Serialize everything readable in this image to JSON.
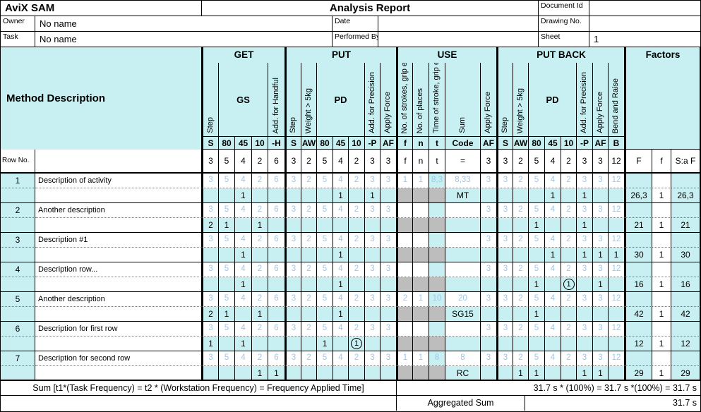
{
  "window": {
    "app_title": "AviX SAM",
    "report_title": "Analysis Report"
  },
  "info": {
    "document_id": {
      "label": "Document Id",
      "value": ""
    },
    "owner": {
      "label": "Owner",
      "value": "No name"
    },
    "date": {
      "label": "Date",
      "value": ""
    },
    "drawing_no": {
      "label": "Drawing No.",
      "value": ""
    },
    "task": {
      "label": "Task",
      "value": "No name"
    },
    "performed_by": {
      "label": "Performed By",
      "value": ""
    },
    "sheet": {
      "label": "Sheet",
      "value": "1"
    }
  },
  "table": {
    "method_description_label": "Method Description",
    "row_no_label": "Row No.",
    "groups": [
      {
        "label": "GET",
        "cols": [
          {
            "vlabel": "Step",
            "code": "S",
            "num": "3"
          },
          {
            "sub": "GS",
            "code": "80",
            "num": "5"
          },
          {
            "sub": "GS",
            "code": "45",
            "num": "4"
          },
          {
            "sub": "GS",
            "code": "10",
            "num": "2"
          },
          {
            "vlabel": "Add. for Handful",
            "code": "-H",
            "num": "6"
          }
        ]
      },
      {
        "label": "PUT",
        "cols": [
          {
            "vlabel": "Step",
            "code": "S",
            "num": "3"
          },
          {
            "vlabel": "Weight > 5kg",
            "code": "AW",
            "num": "2"
          },
          {
            "sub": "PD",
            "code": "80",
            "num": "5"
          },
          {
            "sub": "PD",
            "code": "45",
            "num": "4"
          },
          {
            "sub": "PD",
            "code": "10",
            "num": "2"
          },
          {
            "vlabel": "Add. for Precision",
            "code": "-P",
            "num": "3"
          },
          {
            "vlabel": "Apply Force",
            "code": "AF",
            "num": "3"
          }
        ]
      },
      {
        "label": "USE",
        "cols": [
          {
            "vlabel": "No. of strokes, grip e",
            "code": "f",
            "num": "f"
          },
          {
            "vlabel": "No. of places",
            "code": "n",
            "num": "n"
          },
          {
            "vlabel": "Time of stroke, grip e",
            "code": "t",
            "num": "t"
          },
          {
            "vlabel": "Sum",
            "code": "Code",
            "num": "="
          },
          {
            "vlabel": "Apply Force",
            "code": "AF",
            "num": "3"
          }
        ]
      },
      {
        "label": "PUT BACK",
        "cols": [
          {
            "vlabel": "Step",
            "code": "S",
            "num": "3"
          },
          {
            "vlabel": "Weight > 5kg",
            "code": "AW",
            "num": "2"
          },
          {
            "sub": "PD",
            "code": "80",
            "num": "5"
          },
          {
            "sub": "PD",
            "code": "45",
            "num": "4"
          },
          {
            "sub": "PD",
            "code": "10",
            "num": "2"
          },
          {
            "vlabel": "Add. for Precision",
            "code": "-P",
            "num": "3"
          },
          {
            "vlabel": "Apply Force",
            "code": "AF",
            "num": "3"
          },
          {
            "vlabel": "Bend and Raise",
            "code": "B",
            "num": "12"
          }
        ]
      }
    ],
    "factors": {
      "label": "Factors",
      "cols": [
        "F",
        "f",
        "S:a F"
      ]
    },
    "rows": [
      {
        "no": "1",
        "desc": "Description of activity",
        "light": [
          "3",
          "5",
          "4",
          "2",
          "6",
          "3",
          "2",
          "5",
          "4",
          "2",
          "3",
          "3",
          "1",
          "1",
          "8,3",
          "8,33",
          "3",
          "3",
          "2",
          "5",
          "4",
          "2",
          "3",
          "3",
          "12",
          "",
          "",
          ""
        ],
        "value": [
          "",
          "",
          "1",
          "",
          "",
          "",
          "",
          "",
          "1",
          "",
          "1",
          "",
          "",
          "",
          "",
          "MT",
          "",
          "",
          "",
          "",
          "1",
          "",
          "1",
          "",
          "",
          "26,3",
          "1",
          "26,3"
        ],
        "circled": []
      },
      {
        "no": "2",
        "desc": "Another description",
        "light": [
          "3",
          "5",
          "4",
          "2",
          "6",
          "3",
          "2",
          "5",
          "4",
          "2",
          "3",
          "3",
          "",
          "",
          "",
          "",
          "3",
          "3",
          "2",
          "5",
          "4",
          "2",
          "3",
          "3",
          "12",
          "",
          "",
          ""
        ],
        "value": [
          "2",
          "1",
          "",
          "1",
          "",
          "",
          "",
          "",
          "",
          "",
          "",
          "",
          "",
          "",
          "",
          "",
          "",
          "",
          "",
          "1",
          "",
          "",
          "1",
          "",
          "",
          "21",
          "1",
          "21"
        ],
        "circled": []
      },
      {
        "no": "3",
        "desc": "Description #1",
        "light": [
          "3",
          "5",
          "4",
          "2",
          "6",
          "3",
          "2",
          "5",
          "4",
          "2",
          "3",
          "3",
          "",
          "",
          "",
          "",
          "3",
          "3",
          "2",
          "5",
          "4",
          "2",
          "3",
          "3",
          "12",
          "",
          "",
          ""
        ],
        "value": [
          "",
          "",
          "1",
          "",
          "",
          "",
          "",
          "",
          "1",
          "",
          "",
          "",
          "",
          "",
          "",
          "",
          "",
          "",
          "",
          "",
          "1",
          "",
          "1",
          "1",
          "1",
          "30",
          "1",
          "30"
        ],
        "circled": []
      },
      {
        "no": "4",
        "desc": "Description row...",
        "light": [
          "3",
          "5",
          "4",
          "2",
          "6",
          "3",
          "2",
          "5",
          "4",
          "2",
          "3",
          "3",
          "",
          "",
          "",
          "",
          "3",
          "3",
          "2",
          "5",
          "4",
          "2",
          "3",
          "3",
          "12",
          "",
          "",
          ""
        ],
        "value": [
          "",
          "",
          "1",
          "",
          "",
          "",
          "",
          "",
          "1",
          "",
          "",
          "",
          "",
          "",
          "",
          "",
          "",
          "",
          "",
          "1",
          "",
          "1",
          "",
          "1",
          "",
          "16",
          "1",
          "16"
        ],
        "circled": [
          21
        ]
      },
      {
        "no": "5",
        "desc": "Another description",
        "light": [
          "3",
          "5",
          "4",
          "2",
          "6",
          "3",
          "2",
          "5",
          "4",
          "2",
          "3",
          "3",
          "2",
          "1",
          "10",
          "20",
          "3",
          "3",
          "2",
          "5",
          "4",
          "2",
          "3",
          "3",
          "12",
          "",
          "",
          ""
        ],
        "value": [
          "2",
          "1",
          "",
          "1",
          "",
          "",
          "",
          "",
          "1",
          "",
          "",
          "",
          "",
          "",
          "",
          "SG15",
          "",
          "",
          "",
          "1",
          "",
          "",
          "",
          "",
          "",
          "42",
          "1",
          "42"
        ],
        "circled": []
      },
      {
        "no": "6",
        "desc": "Description for first row",
        "light": [
          "3",
          "5",
          "4",
          "2",
          "6",
          "3",
          "2",
          "5",
          "4",
          "2",
          "3",
          "3",
          "",
          "",
          "",
          "",
          "3",
          "3",
          "2",
          "5",
          "4",
          "2",
          "3",
          "3",
          "12",
          "",
          "",
          ""
        ],
        "value": [
          "1",
          "",
          "1",
          "",
          "",
          "",
          "",
          "1",
          "",
          "1",
          "",
          "",
          "",
          "",
          "",
          "",
          "",
          "",
          "",
          "",
          "",
          "",
          "",
          "",
          "",
          "12",
          "1",
          "12"
        ],
        "circled": [
          9
        ]
      },
      {
        "no": "7",
        "desc": "Description for second row",
        "light": [
          "3",
          "5",
          "4",
          "2",
          "6",
          "3",
          "2",
          "5",
          "4",
          "2",
          "3",
          "3",
          "1",
          "1",
          "8",
          "8",
          "3",
          "3",
          "2",
          "5",
          "4",
          "2",
          "3",
          "3",
          "12",
          "",
          "",
          ""
        ],
        "value": [
          "",
          "",
          "",
          "1",
          "1",
          "",
          "",
          "",
          "",
          "",
          "",
          "",
          "",
          "",
          "",
          "RC",
          "",
          "",
          "1",
          "1",
          "",
          "",
          "1",
          "1",
          "",
          "29",
          "1",
          "29"
        ],
        "circled": []
      }
    ],
    "sum_row": {
      "left": "Sum [t1*(Task Frequency) = t2 * (Workstation Frequency) = Frequency Applied Time]",
      "right": "31.7 s * (100%) = 31.7 s *(100%) = 31.7 s"
    },
    "aggregated_row": {
      "label": "Aggregated Sum",
      "value": "31.7 s"
    }
  },
  "colors": {
    "cell_cyan": "#C8F0F2",
    "cell_gray": "#BDBDBD",
    "default_value_text": "#9CC7EE"
  }
}
